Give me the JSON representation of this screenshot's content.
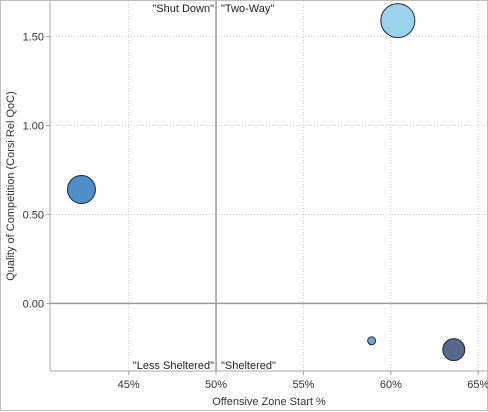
{
  "chart_data": {
    "type": "scatter",
    "xlabel": "Offensive Zone Start %",
    "ylabel": "Quality of Competition (Corsi Rel QoC)",
    "xlim": [
      40.5,
      65.5
    ],
    "ylim": [
      -0.38,
      1.7
    ],
    "x_ticks": [
      {
        "value": 45,
        "label": "45%"
      },
      {
        "value": 50,
        "label": "50%"
      },
      {
        "value": 55,
        "label": "55%"
      },
      {
        "value": 60,
        "label": "60%"
      },
      {
        "value": 65,
        "label": "65%"
      }
    ],
    "y_ticks": [
      {
        "value": 0.0,
        "label": "0.00"
      },
      {
        "value": 0.5,
        "label": "0.50"
      },
      {
        "value": 1.0,
        "label": "1.00"
      },
      {
        "value": 1.5,
        "label": "1.50"
      }
    ],
    "reference_lines": {
      "x": 50,
      "y": 0
    },
    "grid": true,
    "quadrant_labels": {
      "top_left": "\"Shut Down\"",
      "top_right": "\"Two-Way\"",
      "bottom_left": "\"Less Sheltered\"",
      "bottom_right": "\"Sheltered\""
    },
    "points": [
      {
        "x": 42.3,
        "y": 0.64,
        "size": 14,
        "color": "#4f8ec8"
      },
      {
        "x": 60.4,
        "y": 1.59,
        "size": 17,
        "color": "#9dd2ec"
      },
      {
        "x": 58.9,
        "y": -0.21,
        "size": 4,
        "color": "#6ea8d0"
      },
      {
        "x": 63.6,
        "y": -0.26,
        "size": 11,
        "color": "#56698c"
      }
    ]
  }
}
